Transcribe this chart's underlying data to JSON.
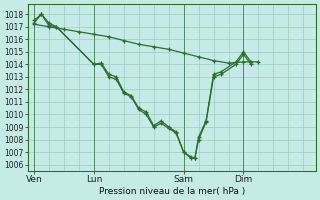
{
  "background_color": "#c5ebe6",
  "grid_color": "#9eccc5",
  "line_color": "#2d6e2d",
  "xlabel": "Pression niveau de la mer( hPa )",
  "ylim": [
    1005.5,
    1018.8
  ],
  "yticks": [
    1006,
    1007,
    1008,
    1009,
    1010,
    1011,
    1012,
    1013,
    1014,
    1015,
    1016,
    1017,
    1018
  ],
  "xtick_labels": [
    "Ven",
    "Lun",
    "Sam",
    "Dim"
  ],
  "xtick_positions": [
    0,
    48,
    120,
    168
  ],
  "total_hours": 216,
  "vline_positions": [
    0,
    48,
    120,
    168
  ],
  "s1_x": [
    0,
    6,
    12,
    18,
    48,
    54,
    60,
    66,
    72,
    78,
    84,
    90,
    96,
    102,
    108,
    114,
    120,
    126,
    129,
    132,
    138,
    144,
    150,
    162,
    168,
    174
  ],
  "s1_y": [
    1017.5,
    1018.0,
    1017.3,
    1017.0,
    1014.0,
    1014.1,
    1013.2,
    1013.0,
    1011.8,
    1011.5,
    1010.5,
    1010.2,
    1009.1,
    1009.5,
    1009.0,
    1008.6,
    1007.0,
    1006.6,
    1006.5,
    1008.2,
    1009.5,
    1013.2,
    1013.4,
    1014.2,
    1015.0,
    1014.2
  ],
  "s2_x": [
    0,
    12,
    24,
    36,
    48,
    60,
    72,
    84,
    96,
    108,
    120,
    132,
    144,
    156,
    168,
    180
  ],
  "s2_y": [
    1017.2,
    1017.0,
    1016.8,
    1016.6,
    1016.4,
    1016.2,
    1015.9,
    1015.6,
    1015.4,
    1015.2,
    1014.9,
    1014.6,
    1014.3,
    1014.1,
    1014.2,
    1014.2
  ],
  "s3_x": [
    0,
    6,
    12,
    18,
    48,
    54,
    60,
    66,
    72,
    78,
    84,
    90,
    96,
    102,
    108,
    114,
    120,
    126,
    129,
    132,
    138,
    144,
    150,
    162,
    168,
    174
  ],
  "s3_y": [
    1017.3,
    1018.0,
    1017.1,
    1017.0,
    1014.0,
    1014.0,
    1013.0,
    1012.8,
    1011.7,
    1011.4,
    1010.4,
    1010.0,
    1009.0,
    1009.3,
    1008.9,
    1008.5,
    1007.0,
    1006.5,
    1006.5,
    1008.0,
    1009.4,
    1013.0,
    1013.2,
    1014.0,
    1014.8,
    1014.0
  ]
}
